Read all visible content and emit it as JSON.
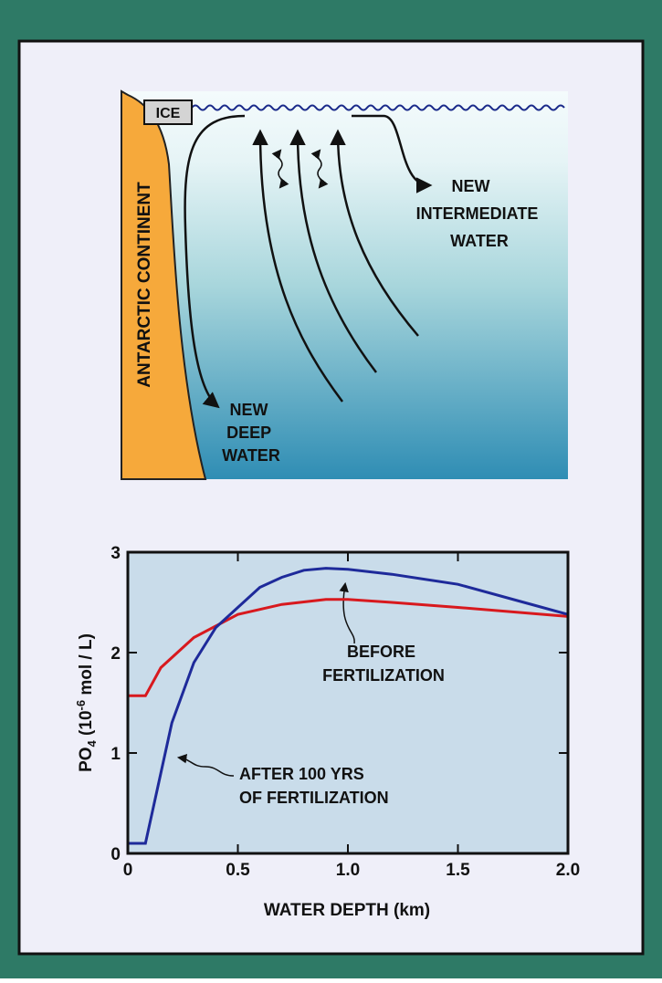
{
  "diagram": {
    "ice": "ICE",
    "continent": "ANTARCTIC CONTINENT",
    "deep_water": [
      "NEW",
      "DEEP",
      "WATER"
    ],
    "intermediate_water": [
      "NEW",
      "INTERMEDIATE",
      "WATER"
    ]
  },
  "chart_data": {
    "type": "line",
    "xlabel": "WATER DEPTH (km)",
    "ylabel": {
      "base": "PO",
      "sub": "4",
      "pre": " (10",
      "sup": "-6",
      "post": " mol / L)"
    },
    "xlim": [
      0,
      2
    ],
    "ylim": [
      0,
      3
    ],
    "xticks": [
      0,
      0.5,
      {
        "value": 1,
        "label": "1.0"
      },
      1.5,
      {
        "value": 2,
        "label": "2.0"
      }
    ],
    "yticks": [
      0,
      1,
      2,
      3
    ],
    "series": [
      {
        "color": "#d8191e",
        "x": [
          0,
          0.08,
          0.15,
          0.3,
          0.5,
          0.7,
          0.9,
          1.0,
          1.2,
          1.5,
          2.0
        ],
        "values": [
          1.57,
          1.57,
          1.85,
          2.15,
          2.38,
          2.48,
          2.53,
          2.53,
          2.5,
          2.45,
          2.36
        ]
      },
      {
        "color": "#1e2a9a",
        "x": [
          0,
          0.08,
          0.15,
          0.2,
          0.3,
          0.4,
          0.5,
          0.6,
          0.7,
          0.8,
          0.9,
          1.0,
          1.2,
          1.5,
          1.8,
          2.0
        ],
        "values": [
          0.1,
          0.1,
          0.8,
          1.3,
          1.9,
          2.25,
          2.45,
          2.65,
          2.75,
          2.82,
          2.84,
          2.83,
          2.78,
          2.68,
          2.5,
          2.38
        ]
      }
    ],
    "annotations": [
      {
        "lines": [
          "BEFORE",
          "FERTILIZATION"
        ]
      },
      {
        "lines": [
          "AFTER 100 YRS",
          "OF FERTILIZATION"
        ]
      }
    ]
  }
}
